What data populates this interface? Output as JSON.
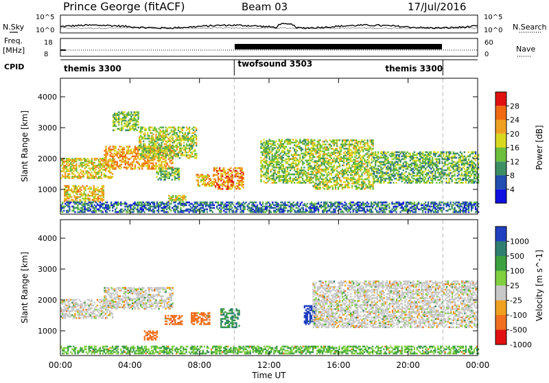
{
  "header": {
    "station": "Prince George (fitACF)",
    "beam": "Beam 03",
    "date": "17/Jul/2016"
  },
  "noise_panel": {
    "left_label": "N.Sky",
    "right_label": "N.Search",
    "tick_top": "10^5",
    "tick_bottom": "10^0"
  },
  "freq_panel": {
    "left_label_1": "Freq.",
    "left_label_2": "[MHz]",
    "tick_top": "18",
    "tick_bottom": "8",
    "right_tick_top": "60",
    "right_tick_bottom": "0",
    "right_label": "Nave"
  },
  "cpid": {
    "label": "CPID",
    "segments": [
      {
        "name": "themis 3300",
        "start_h": 0,
        "end_h": 10
      },
      {
        "name": "twofsound 3503",
        "start_h": 10,
        "end_h": 22
      },
      {
        "name": "themis 3300",
        "start_h": 22,
        "end_h": 24
      }
    ]
  },
  "axes": {
    "xlabel": "Time UT",
    "xticks": [
      "00:00",
      "04:00",
      "08:00",
      "12:00",
      "16:00",
      "20:00",
      "00:00"
    ],
    "ylabel": "Slant Range [km]",
    "yticks": [
      "1000",
      "2000",
      "3000",
      "4000"
    ]
  },
  "power_scale": {
    "label": "Power [dB]",
    "ticks": [
      "4",
      "8",
      "12",
      "16",
      "20",
      "24",
      "28"
    ],
    "colors": [
      "#1010e0",
      "#2050b0",
      "#3d8f63",
      "#6cbf3a",
      "#d8d820",
      "#f0a020",
      "#f06a10",
      "#e01010"
    ]
  },
  "velocity_scale": {
    "label": "Velocity [m s^-1]",
    "ticks": [
      "1000",
      "500",
      "100",
      "25",
      "-25",
      "-100",
      "-500",
      "-1000"
    ],
    "colors": [
      "#2040c0",
      "#2f7f70",
      "#3ca040",
      "#80d040",
      "#c8c8c8",
      "#f0a020",
      "#f07020",
      "#e01010"
    ]
  },
  "chart_data": [
    {
      "type": "heatmap",
      "title": "Power",
      "xlabel": "Time UT",
      "ylabel": "Slant Range [km]",
      "xlim_h": [
        0,
        24
      ],
      "ylim_km": [
        200,
        4600
      ],
      "clabel": "Power [dB]",
      "clim": [
        0,
        32
      ],
      "echo_bands": [
        {
          "start_h": 0.0,
          "end_h": 3.0,
          "range_km": [
            1350,
            2000
          ],
          "level": 19
        },
        {
          "start_h": 0.2,
          "end_h": 2.5,
          "range_km": [
            600,
            1100
          ],
          "level": 20
        },
        {
          "start_h": 2.5,
          "end_h": 6.5,
          "range_km": [
            1650,
            2400
          ],
          "level": 22
        },
        {
          "start_h": 3.0,
          "end_h": 4.5,
          "range_km": [
            2900,
            3500
          ],
          "level": 14
        },
        {
          "start_h": 4.5,
          "end_h": 7.8,
          "range_km": [
            2000,
            3000
          ],
          "level": 16
        },
        {
          "start_h": 5.5,
          "end_h": 6.8,
          "range_km": [
            1300,
            1700
          ],
          "level": 13
        },
        {
          "start_h": 6.2,
          "end_h": 7.2,
          "range_km": [
            600,
            800
          ],
          "level": 18
        },
        {
          "start_h": 7.8,
          "end_h": 8.8,
          "range_km": [
            1100,
            1500
          ],
          "level": 20
        },
        {
          "start_h": 8.8,
          "end_h": 10.5,
          "range_km": [
            1000,
            1700
          ],
          "level": 24
        },
        {
          "start_h": 11.5,
          "end_h": 14.5,
          "range_km": [
            1200,
            2600
          ],
          "level": 15
        },
        {
          "start_h": 14.5,
          "end_h": 18.0,
          "range_km": [
            1000,
            2600
          ],
          "level": 16
        },
        {
          "start_h": 18.0,
          "end_h": 24.0,
          "range_km": [
            1200,
            2200
          ],
          "level": 13
        },
        {
          "start_h": 0.0,
          "end_h": 24.0,
          "range_km": [
            250,
            600
          ],
          "level": 8
        }
      ]
    },
    {
      "type": "heatmap",
      "title": "Velocity",
      "xlabel": "Time UT",
      "ylabel": "Slant Range [km]",
      "xlim_h": [
        0,
        24
      ],
      "ylim_km": [
        200,
        4600
      ],
      "clabel": "Velocity [m s^-1]",
      "clim": [
        -1000,
        1000
      ],
      "echo_bands": [
        {
          "start_h": 0.0,
          "end_h": 3.0,
          "range_km": [
            1400,
            2000
          ],
          "velocity": 0
        },
        {
          "start_h": 2.5,
          "end_h": 6.5,
          "range_km": [
            1700,
            2400
          ],
          "velocity": 0
        },
        {
          "start_h": 4.8,
          "end_h": 5.6,
          "range_km": [
            700,
            1000
          ],
          "velocity": -200
        },
        {
          "start_h": 6.0,
          "end_h": 7.0,
          "range_km": [
            1200,
            1500
          ],
          "velocity": -300
        },
        {
          "start_h": 7.5,
          "end_h": 8.6,
          "range_km": [
            1200,
            1600
          ],
          "velocity": -150
        },
        {
          "start_h": 9.2,
          "end_h": 10.3,
          "range_km": [
            1100,
            1700
          ],
          "velocity": 300
        },
        {
          "start_h": 14.0,
          "end_h": 14.7,
          "range_km": [
            1200,
            1800
          ],
          "velocity": 800
        },
        {
          "start_h": 14.5,
          "end_h": 24.0,
          "range_km": [
            1100,
            2600
          ],
          "velocity": 0
        },
        {
          "start_h": 0.0,
          "end_h": 24.0,
          "range_km": [
            250,
            500
          ],
          "velocity": 60
        }
      ]
    }
  ]
}
